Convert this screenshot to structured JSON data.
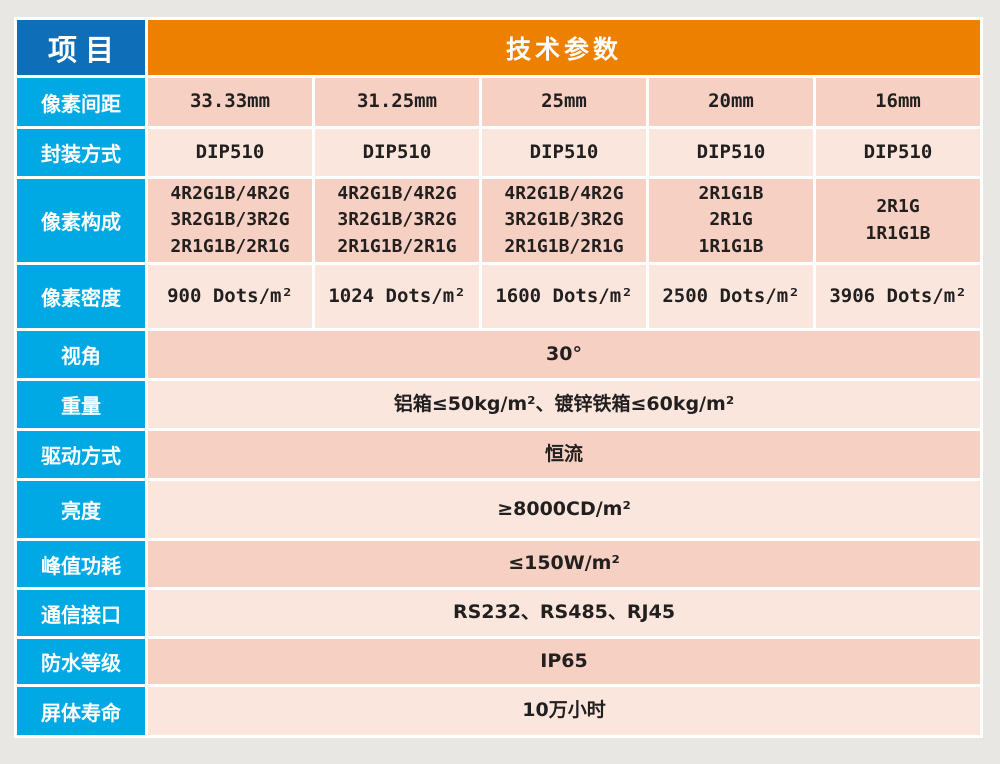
{
  "colors": {
    "page_background": "#e9e7e3",
    "header_blue": "#0e6eb8",
    "header_orange": "#ee8000",
    "label_blue": "#00a9e4",
    "cell_peach_dark": "#f6d0c2",
    "cell_peach_light": "#fbe6de",
    "grid_border_white": "#ffffff",
    "value_text": "#221f1f"
  },
  "header": {
    "item_label": "项目",
    "params_label": "技术参数"
  },
  "table": {
    "spec_rows": [
      {
        "label": "像素间距",
        "values": [
          "33.33mm",
          "31.25mm",
          "25mm",
          "20mm",
          "16mm"
        ]
      },
      {
        "label": "封装方式",
        "values": [
          "DIP510",
          "DIP510",
          "DIP510",
          "DIP510",
          "DIP510"
        ]
      },
      {
        "label": "像素构成",
        "values": [
          "4R2G1B/4R2G\n3R2G1B/3R2G\n2R1G1B/2R1G",
          "4R2G1B/4R2G\n3R2G1B/3R2G\n2R1G1B/2R1G",
          "4R2G1B/4R2G\n3R2G1B/3R2G\n2R1G1B/2R1G",
          "2R1G1B\n2R1G\n1R1G1B",
          "2R1G\n1R1G1B"
        ]
      },
      {
        "label": "像素密度",
        "values": [
          "900 Dots/m²",
          "1024 Dots/m²",
          "1600 Dots/m²",
          "2500 Dots/m²",
          "3906 Dots/m²"
        ]
      }
    ],
    "merged_rows": [
      {
        "label": "视角",
        "value": "30°"
      },
      {
        "label": "重量",
        "value": "铝箱≤50kg/m²、镀锌铁箱≤60kg/m²"
      },
      {
        "label": "驱动方式",
        "value": "恒流"
      },
      {
        "label": "亮度",
        "value": "≥8000CD/m²"
      },
      {
        "label": "峰值功耗",
        "value": "≤150W/m²"
      },
      {
        "label": "通信接口",
        "value": "RS232、RS485、RJ45"
      },
      {
        "label": "防水等级",
        "value": "IP65"
      },
      {
        "label": "屏体寿命",
        "value": "10万小时"
      }
    ]
  }
}
